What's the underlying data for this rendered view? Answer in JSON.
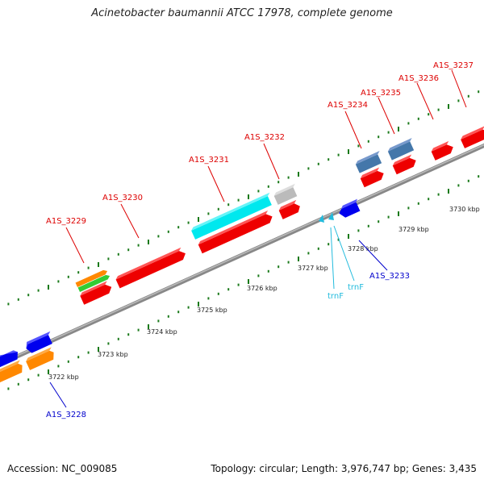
{
  "title": "Acinetobacter baumannii ATCC 17978, complete genome",
  "footer": {
    "accession": "Accession: NC_009085",
    "summary": "Topology: circular; Length: 3,976,747 bp; Genes: 3,435"
  },
  "kbp_labels": [
    "3722 kbp",
    "3723 kbp",
    "3724 kbp",
    "3725 kbp",
    "3726 kbp",
    "3727 kbp",
    "3728 kbp",
    "3729 kbp",
    "3730 kbp"
  ],
  "gene_labels": {
    "A1S_3228": "A1S_3228",
    "A1S_3229": "A1S_3229",
    "A1S_3230": "A1S_3230",
    "A1S_3231": "A1S_3231",
    "A1S_3232": "A1S_3232",
    "A1S_3233": "A1S_3233",
    "A1S_3234": "A1S_3234",
    "A1S_3235": "A1S_3235",
    "A1S_3236": "A1S_3236",
    "A1S_3237": "A1S_3237",
    "trnF_1": "trnF",
    "trnF_2": "trnF"
  },
  "colors": {
    "red": "#ee0000",
    "blue": "#0000ee",
    "orange": "#ff8800",
    "green": "#33cc33",
    "cyan": "#00e8ee",
    "gray": "#bbbbbb",
    "steel": "#4477aa",
    "tick": "#1a7a1a",
    "label_red": "#dd0000",
    "label_blue": "#0000cc",
    "label_cyan": "#22bbdd"
  }
}
